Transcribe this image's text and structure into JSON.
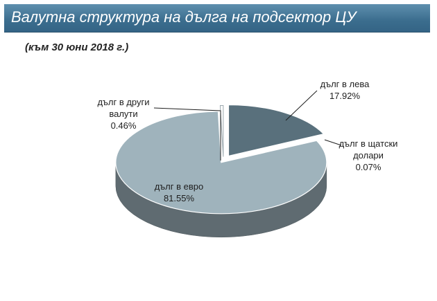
{
  "title": "Валутна структура на дълга на подсектор ЦУ",
  "subtitle": "(към 30 юни 2018 г.)",
  "colors": {
    "title_bg": "#3f6f90",
    "euro": "#9fb3bc",
    "leva": "#59707c",
    "usd": "#2f3d44",
    "other": "#ffffff"
  },
  "chart_data": {
    "type": "pie",
    "style": "3d-exploded",
    "slices": [
      {
        "label_lines": [
          "дълг в лева"
        ],
        "value_label": "17.92%",
        "value": 17.92,
        "color": "#59707c"
      },
      {
        "label_lines": [
          "дълг в щатски",
          "долари"
        ],
        "value_label": "0.07%",
        "value": 0.07,
        "color": "#2f3d44"
      },
      {
        "label_lines": [
          "дълг в евро"
        ],
        "value_label": "81.55%",
        "value": 81.55,
        "color": "#9fb3bc"
      },
      {
        "label_lines": [
          "дълг в други",
          "валути"
        ],
        "value_label": "0.46%",
        "value": 0.46,
        "color": "#ffffff"
      }
    ]
  }
}
